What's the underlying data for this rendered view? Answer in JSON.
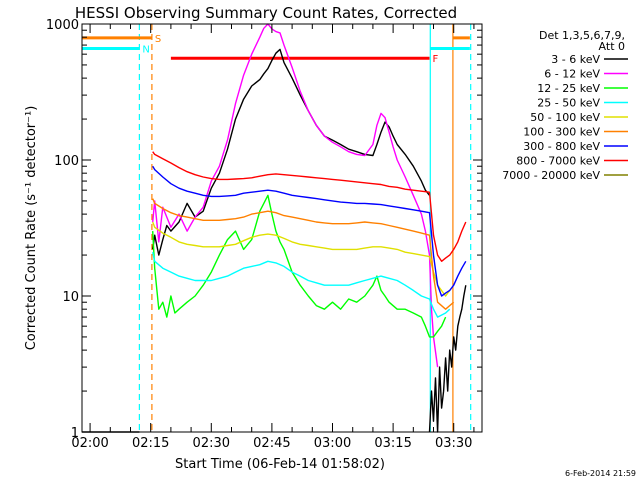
{
  "chart_data": {
    "type": "line",
    "title": "HESSI Observing Summary Count Rates, Corrected",
    "xlabel": "Start Time (06-Feb-14 01:58:02)",
    "ylabel": "Corrected Count Rate (s⁻¹ detector⁻¹)",
    "y_scale": "log",
    "ylim": [
      1,
      1000
    ],
    "xlim": [
      "01:58:02",
      "03:37:00"
    ],
    "x_ticks": [
      "02:00",
      "02:15",
      "02:30",
      "02:45",
      "03:00",
      "03:15",
      "03:30"
    ],
    "x_tick_minutes": [
      2,
      17,
      32,
      47,
      62,
      77,
      92
    ],
    "y_ticks": [
      "1",
      "10",
      "100",
      "1000"
    ],
    "y_tick_values": [
      1,
      10,
      100,
      1000
    ],
    "legend_header": [
      "Det 1,3,5,6,7,9,",
      "Att 0"
    ],
    "legend_position": "right",
    "timestamp": "6-Feb-2014 21:59",
    "flags": [
      {
        "letter": "S",
        "color": "#ff8000",
        "segments": [
          [
            0,
            17.3
          ],
          [
            91.8,
            96
          ]
        ],
        "value": 790
      },
      {
        "letter": "N",
        "color": "#00ffff",
        "segments": [
          [
            0,
            14.2
          ],
          [
            86.2,
            96
          ]
        ],
        "value": 660
      },
      {
        "letter": "F",
        "color": "#ff0000",
        "segments": [
          [
            22,
            86
          ]
        ],
        "value": 560
      }
    ],
    "vlines": [
      {
        "x": 14.2,
        "color": "#00ffff",
        "style": "dashed"
      },
      {
        "x": 17.3,
        "color": "#ff8000",
        "style": "dashed"
      },
      {
        "x": 86.2,
        "color": "#00ffff",
        "style": "solid"
      },
      {
        "x": 91.8,
        "color": "#ff8000",
        "style": "solid"
      },
      {
        "x": 96.2,
        "color": "#00ffff",
        "style": "dashed"
      }
    ],
    "series": [
      {
        "name": "3 - 6 keV",
        "color": "#000000",
        "segments": [
          {
            "x": [
              0,
              14.2
            ],
            "y": [
              1,
              1
            ]
          },
          {
            "x": [
              17.5,
              18,
              19,
              20,
              21,
              22,
              24,
              26,
              28,
              30,
              32,
              34,
              36,
              38,
              40,
              42,
              44,
              45,
              46,
              47,
              48,
              49,
              50,
              52,
              54,
              56,
              58,
              60,
              62,
              64,
              66,
              68,
              70,
              72,
              73,
              74,
              75,
              76,
              77,
              78,
              80,
              82,
              84,
              85,
              86
            ],
            "y": [
              22,
              28,
              20,
              26,
              33,
              30,
              35,
              48,
              38,
              42,
              62,
              80,
              120,
              200,
              280,
              350,
              390,
              430,
              470,
              540,
              610,
              650,
              520,
              400,
              300,
              230,
              180,
              150,
              140,
              130,
              120,
              115,
              110,
              108,
              130,
              160,
              190,
              175,
              150,
              130,
              110,
              90,
              70,
              60,
              55
            ]
          },
          {
            "x": [
              86,
              86.5,
              87,
              87.5,
              88,
              88.5,
              89,
              89.5,
              90,
              90.5,
              91,
              91.5,
              92,
              92.5,
              93,
              93.5,
              94,
              94.5,
              95
            ],
            "y": [
              1,
              2,
              1.2,
              2.5,
              1,
              3,
              1.5,
              2,
              3.5,
              2,
              4,
              3,
              5,
              4,
              6,
              7,
              8,
              10,
              12
            ]
          }
        ]
      },
      {
        "name": "6 - 12 keV",
        "color": "#ff00ff",
        "segments": [
          {
            "x": [
              17.5,
              18,
              19,
              20,
              21,
              22,
              24,
              26,
              28,
              30,
              32,
              34,
              36,
              38,
              40,
              42,
              44,
              45,
              46,
              47,
              48,
              49,
              50,
              52,
              54,
              56,
              58,
              60,
              62,
              64,
              66,
              68,
              70,
              72,
              73,
              74,
              75,
              76,
              77,
              78,
              80,
              82,
              84,
              85
            ],
            "y": [
              35,
              50,
              25,
              45,
              38,
              32,
              40,
              30,
              38,
              45,
              70,
              90,
              140,
              260,
              420,
              600,
              800,
              930,
              1000,
              920,
              880,
              860,
              700,
              480,
              320,
              230,
              180,
              150,
              135,
              125,
              115,
              110,
              108,
              130,
              180,
              220,
              205,
              160,
              125,
              100,
              75,
              55,
              40,
              30
            ]
          },
          {
            "x": [
              85,
              86,
              86.5,
              87,
              88
            ],
            "y": [
              30,
              20,
              8,
              5,
              3
            ]
          }
        ]
      },
      {
        "name": "12 - 25 keV",
        "color": "#00ff00",
        "segments": [
          {
            "x": [
              17.5,
              18,
              19,
              20,
              21,
              22,
              23,
              24,
              26,
              28,
              30,
              32,
              34,
              36,
              38,
              40,
              42,
              44,
              45,
              46,
              47,
              48,
              49,
              50,
              52,
              54,
              56,
              58,
              60,
              62,
              64,
              66,
              68,
              70,
              72,
              73,
              74,
              75,
              76,
              78,
              80,
              82,
              84,
              85,
              86,
              87,
              88,
              89,
              90
            ],
            "y": [
              30,
              16,
              8,
              9,
              7,
              10,
              7.5,
              8,
              9,
              10,
              12,
              15,
              20,
              26,
              30,
              22,
              26,
              42,
              48,
              55,
              40,
              30,
              25,
              22,
              15,
              12,
              10,
              8.5,
              8,
              9,
              8,
              9.5,
              9,
              10,
              12,
              14,
              11,
              10,
              9,
              8,
              8,
              7.5,
              7,
              6,
              5,
              5,
              5.5,
              6,
              7
            ]
          }
        ]
      },
      {
        "name": "25 - 50 keV",
        "color": "#00ffff",
        "segments": [
          {
            "x": [
              17.5,
              18,
              20,
              22,
              24,
              26,
              28,
              30,
              32,
              34,
              36,
              38,
              40,
              42,
              44,
              46,
              48,
              50,
              52,
              54,
              56,
              58,
              60,
              62,
              64,
              66,
              68,
              70,
              72,
              74,
              76,
              78,
              80,
              82,
              84,
              86,
              87,
              88,
              90,
              91
            ],
            "y": [
              21,
              18,
              16,
              15,
              14,
              13.5,
              13,
              13,
              13,
              13.5,
              14,
              15,
              16,
              16.5,
              17,
              18,
              17.5,
              16.5,
              15,
              14,
              13,
              12.5,
              12,
              12,
              12,
              12,
              12.5,
              13,
              13.5,
              14,
              13.5,
              13,
              12,
              11,
              10,
              9.5,
              8,
              7,
              7.5,
              8
            ]
          }
        ]
      },
      {
        "name": "50 - 100 keV",
        "color": "#e0e000",
        "segments": [
          {
            "x": [
              17.5,
              18,
              20,
              22,
              24,
              26,
              28,
              30,
              32,
              34,
              36,
              38,
              40,
              42,
              44,
              46,
              48,
              50,
              52,
              54,
              56,
              58,
              60,
              62,
              64,
              66,
              68,
              70,
              72,
              74,
              76,
              78,
              80,
              82,
              84,
              86,
              87,
              88,
              90,
              91
            ],
            "y": [
              35,
              32,
              29,
              27,
              25,
              24,
              23.5,
              23,
              23,
              23,
              23.5,
              24,
              25.5,
              27,
              28,
              28.5,
              28,
              26.5,
              25,
              24,
              23.5,
              23,
              22.5,
              22,
              22,
              22,
              22,
              22.5,
              23,
              23,
              22.5,
              22,
              21,
              20.5,
              20,
              19.5,
              15,
              12,
              10,
              11
            ]
          }
        ]
      },
      {
        "name": "100 - 300 keV",
        "color": "#ff8000",
        "segments": [
          {
            "x": [
              17.5,
              18,
              20,
              22,
              24,
              26,
              28,
              30,
              32,
              34,
              36,
              38,
              40,
              42,
              44,
              46,
              48,
              50,
              52,
              54,
              56,
              58,
              60,
              62,
              64,
              66,
              68,
              70,
              72,
              74,
              76,
              78,
              80,
              82,
              84,
              86,
              87,
              88,
              90,
              91,
              92
            ],
            "y": [
              52,
              48,
              44,
              41,
              39,
              38,
              37,
              36,
              36,
              36,
              36.5,
              37,
              38,
              40,
              41,
              42,
              41,
              39,
              38,
              37,
              36,
              35,
              34.5,
              34,
              34,
              34,
              34.5,
              35,
              34.5,
              34,
              33,
              32,
              31,
              30,
              29,
              28,
              14,
              9,
              8,
              8.5,
              9
            ]
          }
        ]
      },
      {
        "name": "300 - 800 keV",
        "color": "#0000ff",
        "segments": [
          {
            "x": [
              17.5,
              18,
              20,
              22,
              24,
              26,
              28,
              30,
              32,
              34,
              36,
              38,
              40,
              42,
              44,
              46,
              48,
              50,
              52,
              54,
              56,
              58,
              60,
              62,
              64,
              66,
              68,
              70,
              72,
              74,
              76,
              78,
              80,
              82,
              84,
              86,
              87,
              88,
              89,
              90,
              91,
              92,
              93,
              94,
              95
            ],
            "y": [
              90,
              85,
              75,
              67,
              62,
              59,
              57,
              55,
              54,
              54,
              54.5,
              55,
              57,
              58,
              59,
              60,
              59,
              57,
              55,
              54,
              53,
              52,
              51,
              50,
              49,
              48.5,
              48,
              48,
              47.5,
              47,
              46,
              45,
              44,
              43,
              42,
              41,
              20,
              12,
              10,
              10.5,
              11,
              12,
              14,
              16,
              18
            ]
          }
        ]
      },
      {
        "name": "800 - 7000 keV",
        "color": "#ff0000",
        "segments": [
          {
            "x": [
              17.5,
              18,
              20,
              22,
              24,
              26,
              28,
              30,
              32,
              34,
              36,
              38,
              40,
              42,
              44,
              46,
              48,
              50,
              52,
              54,
              56,
              58,
              60,
              62,
              64,
              66,
              68,
              70,
              72,
              74,
              76,
              78,
              80,
              82,
              84,
              86,
              87,
              88,
              89,
              90,
              91,
              92,
              93,
              94,
              95
            ],
            "y": [
              115,
              110,
              102,
              95,
              88,
              82,
              78,
              75,
              73,
              72,
              72,
              72.5,
              73,
              74,
              76,
              78,
              79,
              78,
              77,
              76,
              75,
              74,
              73,
              72,
              71,
              70,
              69,
              68,
              67,
              66,
              64,
              63,
              61,
              60,
              59,
              58,
              28,
              20,
              18,
              19,
              20,
              22,
              25,
              30,
              35
            ]
          }
        ]
      },
      {
        "name": "7000 - 20000 keV",
        "color": "#808000",
        "segments": []
      }
    ]
  }
}
